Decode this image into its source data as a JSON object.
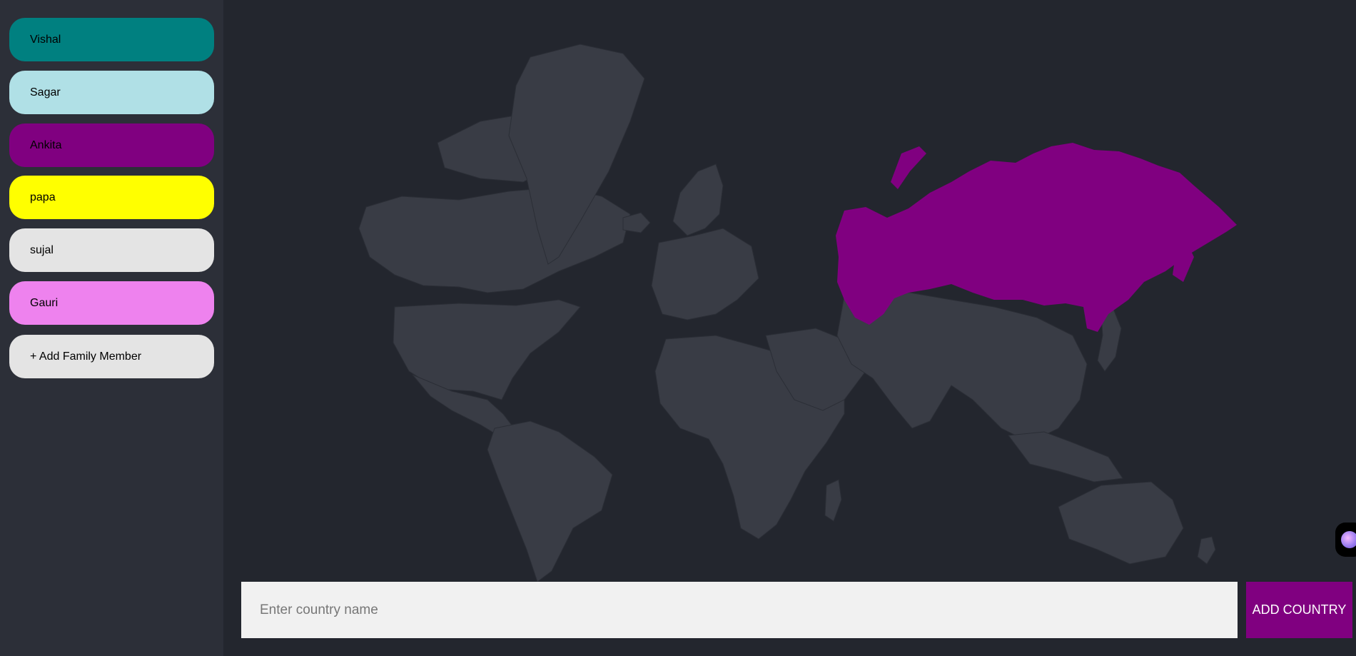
{
  "family_members": [
    {
      "name": "Vishal",
      "color": "#008080"
    },
    {
      "name": "Sagar",
      "color": "#b0e0e6"
    },
    {
      "name": "Ankita",
      "color": "#800080"
    },
    {
      "name": "papa",
      "color": "#ffff00"
    },
    {
      "name": "sujal",
      "color": "#e4e4e4"
    },
    {
      "name": "Gauri",
      "color": "#ee82ee"
    }
  ],
  "add_member_label": "+ Add Family Member",
  "country_input": {
    "placeholder": "Enter country name",
    "value": ""
  },
  "add_country_label": "ADD COUNTRY",
  "map": {
    "land_color": "#393c45",
    "highlight_color": "#800080",
    "highlighted_countries": [
      "Russia"
    ]
  },
  "colors": {
    "sidebar_bg": "#2c2f38",
    "page_bg": "#23262e",
    "button_bg": "#800080"
  }
}
